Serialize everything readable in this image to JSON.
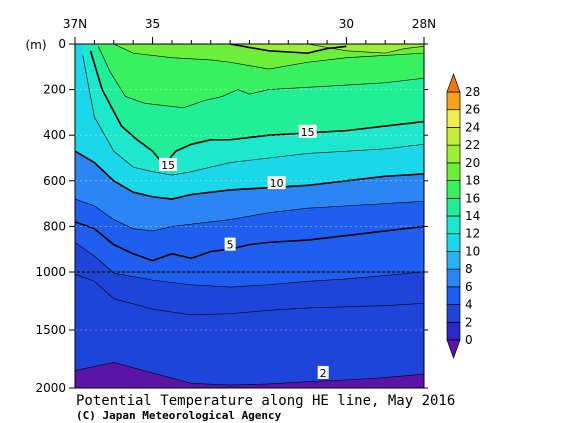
{
  "chart_data": {
    "type": "heatmap",
    "title": "Potential Temperature along HE line, May 2016",
    "credit": "(C) Japan Meteorological Agency",
    "xlabel": "",
    "ylabel": "(m)",
    "x_axis": {
      "ticks": [
        {
          "lat": 37,
          "label": "37N"
        },
        {
          "lat": 35,
          "label": "35"
        },
        {
          "lat": 30,
          "label": "30"
        },
        {
          "lat": 28,
          "label": "28N"
        }
      ],
      "range": [
        37,
        28
      ],
      "minor_ticks": [
        36.5,
        36,
        35.5,
        34.5,
        34,
        33.5,
        33,
        32.5,
        32,
        31.5,
        31,
        30.5,
        29.5,
        29,
        28.5
      ]
    },
    "y_axis": {
      "upper_segment": {
        "range": [
          0,
          1000
        ],
        "ticks": [
          {
            "value": 0,
            "label": "0"
          },
          {
            "value": 200,
            "label": "200"
          },
          {
            "value": 400,
            "label": "400"
          },
          {
            "value": 600,
            "label": "600"
          },
          {
            "value": 800,
            "label": "800"
          },
          {
            "value": 1000,
            "label": "1000"
          }
        ]
      },
      "lower_segment": {
        "range": [
          1000,
          2000
        ],
        "ticks": [
          {
            "value": 1500,
            "label": "1500"
          },
          {
            "value": 2000,
            "label": "2000"
          }
        ]
      }
    },
    "colorbar": {
      "levels": [
        0,
        2,
        4,
        6,
        8,
        10,
        12,
        14,
        16,
        18,
        20,
        22,
        24,
        26,
        28
      ],
      "labels": [
        "0",
        "2",
        "4",
        "6",
        "8",
        "10",
        "12",
        "14",
        "16",
        "18",
        "20",
        "22",
        "24",
        "26",
        "28"
      ],
      "colors": [
        "#5a15a6",
        "#2c28c6",
        "#1f44d9",
        "#1e5ff0",
        "#2b86f5",
        "#28b2f2",
        "#1ad8ea",
        "#1de8cc",
        "#22ee98",
        "#38f060",
        "#6cee3a",
        "#9cee38",
        "#c4ee3c",
        "#eeee50",
        "#f4a21e",
        "#f07812"
      ]
    },
    "isotherm_labels": [
      {
        "value": 15,
        "text": "15"
      },
      {
        "value": 15,
        "text": "15"
      },
      {
        "value": 10,
        "text": "10"
      },
      {
        "value": 5,
        "text": "5"
      },
      {
        "value": 2,
        "text": "2"
      }
    ],
    "isotherms": [
      {
        "temp": 2,
        "points": [
          [
            37,
            1850
          ],
          [
            36,
            1780
          ],
          [
            35,
            1870
          ],
          [
            34,
            1960
          ],
          [
            33,
            1975
          ],
          [
            32,
            1965
          ],
          [
            31,
            1945
          ],
          [
            30,
            1930
          ],
          [
            29,
            1910
          ],
          [
            28,
            1880
          ]
        ]
      },
      {
        "temp": 3,
        "points": [
          [
            37,
            1020
          ],
          [
            36.5,
            1080
          ],
          [
            36,
            1230
          ],
          [
            35,
            1320
          ],
          [
            34,
            1370
          ],
          [
            33,
            1360
          ],
          [
            32,
            1330
          ],
          [
            31,
            1310
          ],
          [
            30,
            1300
          ],
          [
            29,
            1290
          ],
          [
            28,
            1270
          ]
        ]
      },
      {
        "temp": 4,
        "points": [
          [
            37,
            870
          ],
          [
            36.5,
            930
          ],
          [
            36,
            1010
          ],
          [
            35,
            1070
          ],
          [
            34,
            1110
          ],
          [
            33,
            1130
          ],
          [
            32,
            1110
          ],
          [
            31,
            1080
          ],
          [
            30,
            1060
          ],
          [
            29,
            1030
          ],
          [
            28,
            1000
          ]
        ]
      },
      {
        "temp": 5,
        "points": [
          [
            37,
            780
          ],
          [
            36.5,
            810
          ],
          [
            36,
            880
          ],
          [
            35.5,
            920
          ],
          [
            35,
            950
          ],
          [
            34.5,
            920
          ],
          [
            34,
            940
          ],
          [
            33.5,
            910
          ],
          [
            33,
            900
          ],
          [
            32.5,
            880
          ],
          [
            32,
            870
          ],
          [
            31,
            860
          ],
          [
            30,
            840
          ],
          [
            29,
            820
          ],
          [
            28,
            800
          ]
        ]
      },
      {
        "temp": 7,
        "points": [
          [
            37,
            680
          ],
          [
            36.5,
            710
          ],
          [
            36,
            770
          ],
          [
            35.5,
            810
          ],
          [
            35,
            820
          ],
          [
            34.5,
            800
          ],
          [
            34,
            790
          ],
          [
            33.5,
            780
          ],
          [
            33,
            770
          ],
          [
            32,
            740
          ],
          [
            31,
            720
          ],
          [
            30,
            710
          ],
          [
            29,
            700
          ],
          [
            28,
            690
          ]
        ]
      },
      {
        "temp": 10,
        "points": [
          [
            37,
            470
          ],
          [
            36.5,
            520
          ],
          [
            36,
            600
          ],
          [
            35.5,
            650
          ],
          [
            35,
            670
          ],
          [
            34.5,
            680
          ],
          [
            34,
            660
          ],
          [
            33.5,
            650
          ],
          [
            33,
            640
          ],
          [
            32,
            630
          ],
          [
            31,
            620
          ],
          [
            30,
            600
          ],
          [
            29,
            580
          ],
          [
            28,
            570
          ]
        ]
      },
      {
        "temp": 12,
        "points": [
          [
            36.8,
            50
          ],
          [
            36.5,
            320
          ],
          [
            36,
            470
          ],
          [
            35.5,
            540
          ],
          [
            35,
            560
          ],
          [
            34.5,
            575
          ],
          [
            34,
            560
          ],
          [
            33.5,
            540
          ],
          [
            33,
            520
          ],
          [
            32,
            500
          ],
          [
            31,
            480
          ],
          [
            30,
            470
          ],
          [
            29,
            460
          ],
          [
            28,
            440
          ]
        ]
      },
      {
        "temp": 15,
        "points": [
          [
            36.6,
            30
          ],
          [
            36.3,
            200
          ],
          [
            35.8,
            360
          ],
          [
            35.4,
            420
          ],
          [
            35.0,
            470
          ],
          [
            34.7,
            530
          ],
          [
            34.4,
            470
          ],
          [
            34.0,
            440
          ],
          [
            33.5,
            420
          ],
          [
            33,
            420
          ],
          [
            32.5,
            410
          ],
          [
            32,
            400
          ],
          [
            31,
            390
          ],
          [
            30,
            380
          ],
          [
            29,
            360
          ],
          [
            28,
            340
          ]
        ]
      },
      {
        "temp": 17,
        "points": [
          [
            36.4,
            10
          ],
          [
            36.1,
            120
          ],
          [
            35.7,
            230
          ],
          [
            35.2,
            260
          ],
          [
            34.7,
            270
          ],
          [
            34.2,
            280
          ],
          [
            33.7,
            250
          ],
          [
            33.2,
            230
          ],
          [
            32.8,
            200
          ],
          [
            32.5,
            220
          ],
          [
            32,
            200
          ],
          [
            31,
            190
          ],
          [
            30,
            180
          ],
          [
            29,
            170
          ],
          [
            28,
            150
          ]
        ]
      },
      {
        "temp": 19,
        "points": [
          [
            36.0,
            0
          ],
          [
            35.5,
            40
          ],
          [
            34.5,
            60
          ],
          [
            33.5,
            70
          ],
          [
            33,
            80
          ],
          [
            32.5,
            95
          ],
          [
            32,
            110
          ],
          [
            31,
            80
          ],
          [
            30,
            60
          ],
          [
            29,
            50
          ],
          [
            28,
            40
          ]
        ]
      },
      {
        "temp": 20,
        "points": [
          [
            33,
            0
          ],
          [
            32,
            30
          ],
          [
            31,
            40
          ],
          [
            30.5,
            20
          ],
          [
            30,
            10
          ]
        ]
      },
      {
        "temp": 21,
        "points": [
          [
            31,
            0
          ],
          [
            30,
            30
          ],
          [
            29,
            40
          ],
          [
            28.5,
            20
          ],
          [
            28,
            10
          ]
        ]
      }
    ],
    "isotherm_label_positions": [
      {
        "temp": 15,
        "lat": 31.0,
        "depth": 385
      },
      {
        "temp": 15,
        "lat": 34.6,
        "depth": 530
      },
      {
        "temp": 10,
        "lat": 31.8,
        "depth": 610
      },
      {
        "temp": 5,
        "lat": 33.0,
        "depth": 880
      },
      {
        "temp": 2,
        "lat": 30.6,
        "depth": 1870
      }
    ]
  }
}
